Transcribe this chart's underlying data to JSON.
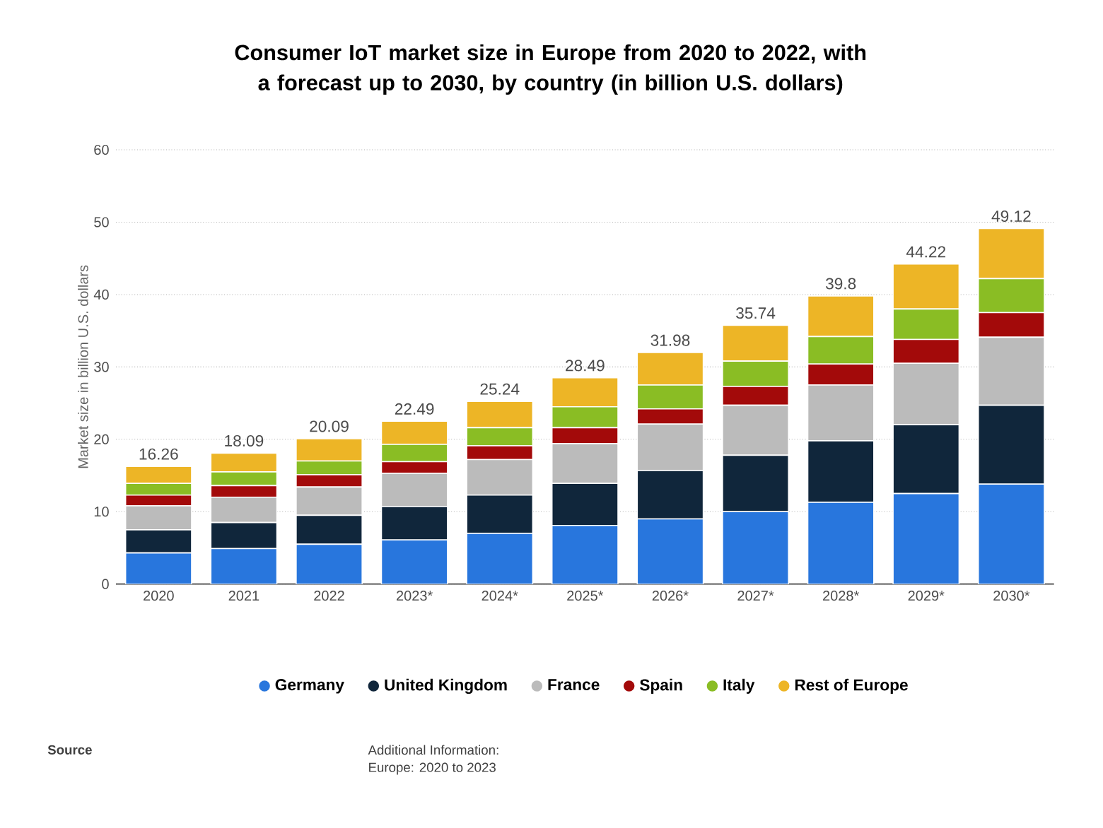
{
  "chart_data": {
    "type": "bar",
    "stacked": true,
    "title": "Consumer IoT market size in Europe from 2020 to 2022, with a forecast up to 2030, by country (in billion U.S. dollars)",
    "ylabel": "Market size in billion U.S. dollars",
    "categories": [
      "2020",
      "2021",
      "2022",
      "2023*",
      "2024*",
      "2025*",
      "2026*",
      "2027*",
      "2028*",
      "2029*",
      "2030*"
    ],
    "series": [
      {
        "name": "Germany",
        "color": "#2876dd",
        "values": [
          4.3,
          4.9,
          5.5,
          6.1,
          7.0,
          8.1,
          9.0,
          10.0,
          11.3,
          12.5,
          13.8
        ]
      },
      {
        "name": "United Kingdom",
        "color": "#10263b",
        "values": [
          3.2,
          3.6,
          4.0,
          4.6,
          5.3,
          5.8,
          6.7,
          7.8,
          8.5,
          9.5,
          10.9
        ]
      },
      {
        "name": "France",
        "color": "#bbbbbb",
        "values": [
          3.3,
          3.5,
          3.9,
          4.6,
          4.9,
          5.5,
          6.4,
          6.9,
          7.7,
          8.5,
          9.4
        ]
      },
      {
        "name": "Spain",
        "color": "#a30a0a",
        "values": [
          1.5,
          1.6,
          1.7,
          1.6,
          1.9,
          2.2,
          2.1,
          2.6,
          2.9,
          3.3,
          3.4
        ]
      },
      {
        "name": "Italy",
        "color": "#8abd24",
        "values": [
          1.6,
          1.9,
          1.9,
          2.4,
          2.5,
          2.9,
          3.3,
          3.5,
          3.8,
          4.2,
          4.7
        ]
      },
      {
        "name": "Rest of Europe",
        "color": "#edb526",
        "values": [
          2.36,
          2.59,
          3.09,
          3.19,
          3.64,
          3.99,
          4.48,
          4.94,
          5.6,
          6.22,
          6.92
        ]
      }
    ],
    "totals": [
      "16.26",
      "18.09",
      "20.09",
      "22.49",
      "25.24",
      "28.49",
      "31.98",
      "35.74",
      "39.8",
      "44.22",
      "49.12"
    ],
    "ylim": [
      0,
      60
    ],
    "yticks": [
      0,
      10,
      20,
      30,
      40,
      50,
      60
    ],
    "grid": "y",
    "legend": "bottom",
    "annotations": [
      "Source",
      "Additional Information:",
      "Europe: 2020 to 2023"
    ]
  }
}
